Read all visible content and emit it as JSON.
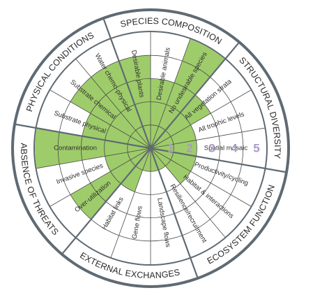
{
  "diagram": {
    "categories": [
      {
        "label": "SPECIES COMPOSITION"
      },
      {
        "label": "STRUCTURAL DIVERSITY"
      },
      {
        "label": "ECOSYSTEM FUNCTION"
      },
      {
        "label": "EXTERNAL EXCHANGES"
      },
      {
        "label": "ABSENCE OF THREATS"
      },
      {
        "label": "PHYSICAL CONDITIONS"
      }
    ],
    "attributes": [
      {
        "label": "Desirable plants",
        "score": 4
      },
      {
        "label": "Desirable animals",
        "score": 3
      },
      {
        "label": "No undesirable species",
        "score": 5
      },
      {
        "label": "All vegetation strata",
        "score": 3
      },
      {
        "label": "All trophic levels",
        "score": 2
      },
      {
        "label": "Spatial mosaic",
        "score": 2
      },
      {
        "label": "Productivity/cycling",
        "score": 2
      },
      {
        "label": "Habitat & interactions",
        "score": 2
      },
      {
        "label": "Resilience/recruitment",
        "score": 1
      },
      {
        "label": "Landscape flows",
        "score": 1
      },
      {
        "label": "Gene flows",
        "score": 1
      },
      {
        "label": "Habitat links",
        "score": 2
      },
      {
        "label": "Over-utilization",
        "score": 4
      },
      {
        "label": "Invasive species",
        "score": 2
      },
      {
        "label": "Contamination",
        "score": 5
      },
      {
        "label": "Substrate physical",
        "score": 3
      },
      {
        "label": "Substrate chemical",
        "score": 4
      },
      {
        "label": "Water chemo-physical",
        "score": 4
      }
    ],
    "scale_labels": [
      "1",
      "2",
      "3",
      "4",
      "5"
    ],
    "colors": {
      "fill": "#9ecc6a",
      "ring_band": "#5f6a73",
      "lines": "#4a4a4a",
      "scale": "#a99ac6"
    }
  }
}
